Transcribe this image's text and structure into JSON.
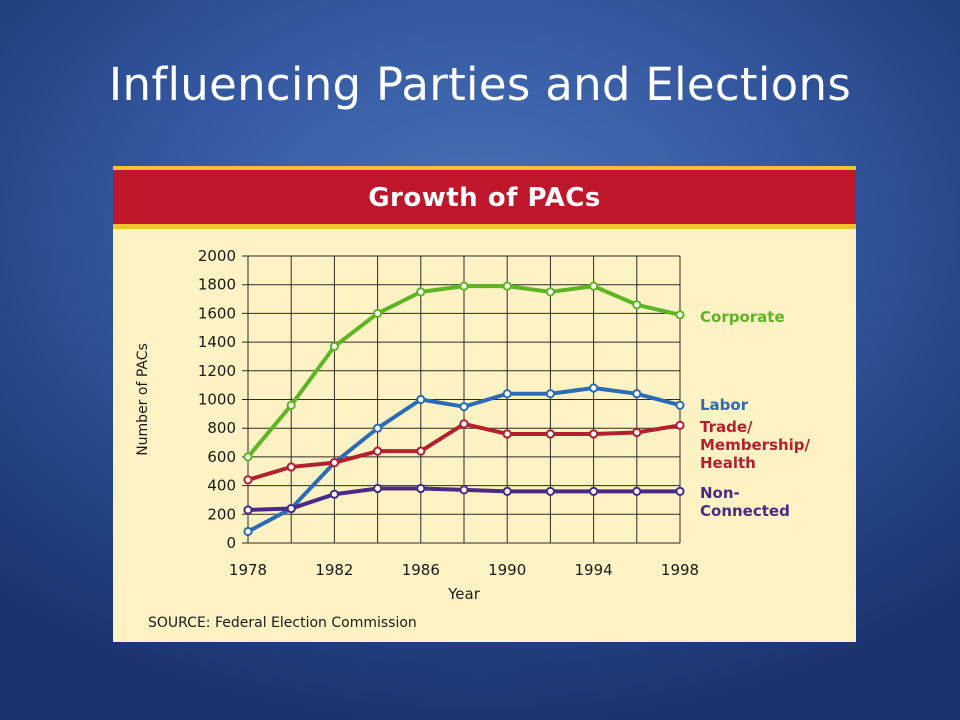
{
  "slide": {
    "title": "Influencing Parties and Elections"
  },
  "chart_data": {
    "type": "line",
    "title": "Growth of PACs",
    "xlabel": "Year",
    "ylabel": "Number of PACs",
    "source": "SOURCE: Federal Election Commission",
    "x": [
      1978,
      1980,
      1982,
      1984,
      1986,
      1988,
      1990,
      1992,
      1994,
      1996,
      1998
    ],
    "xticks": [
      "1978",
      "1982",
      "1986",
      "1990",
      "1994",
      "1998"
    ],
    "yticks": [
      "0",
      "200",
      "400",
      "600",
      "800",
      "1000",
      "1200",
      "1400",
      "1600",
      "1800",
      "2000"
    ],
    "xlim": [
      1978,
      1998
    ],
    "ylim": [
      0,
      2000
    ],
    "grid": true,
    "legend": "right, at line ends",
    "series": [
      {
        "name": "Corporate",
        "color": "#5db524",
        "values": [
          600,
          960,
          1370,
          1600,
          1750,
          1790,
          1790,
          1750,
          1790,
          1660,
          1590
        ]
      },
      {
        "name": "Labor",
        "color": "#2b6cb5",
        "values": [
          80,
          240,
          560,
          800,
          1000,
          950,
          1040,
          1040,
          1080,
          1040,
          960
        ]
      },
      {
        "name": "Trade/ Membership/ Health",
        "color": "#b3202e",
        "values": [
          440,
          530,
          560,
          640,
          640,
          830,
          760,
          760,
          760,
          770,
          820
        ]
      },
      {
        "name": "Non- Connected",
        "color": "#4a2a85",
        "values": [
          230,
          240,
          340,
          380,
          380,
          370,
          360,
          360,
          360,
          360,
          360
        ]
      }
    ]
  }
}
